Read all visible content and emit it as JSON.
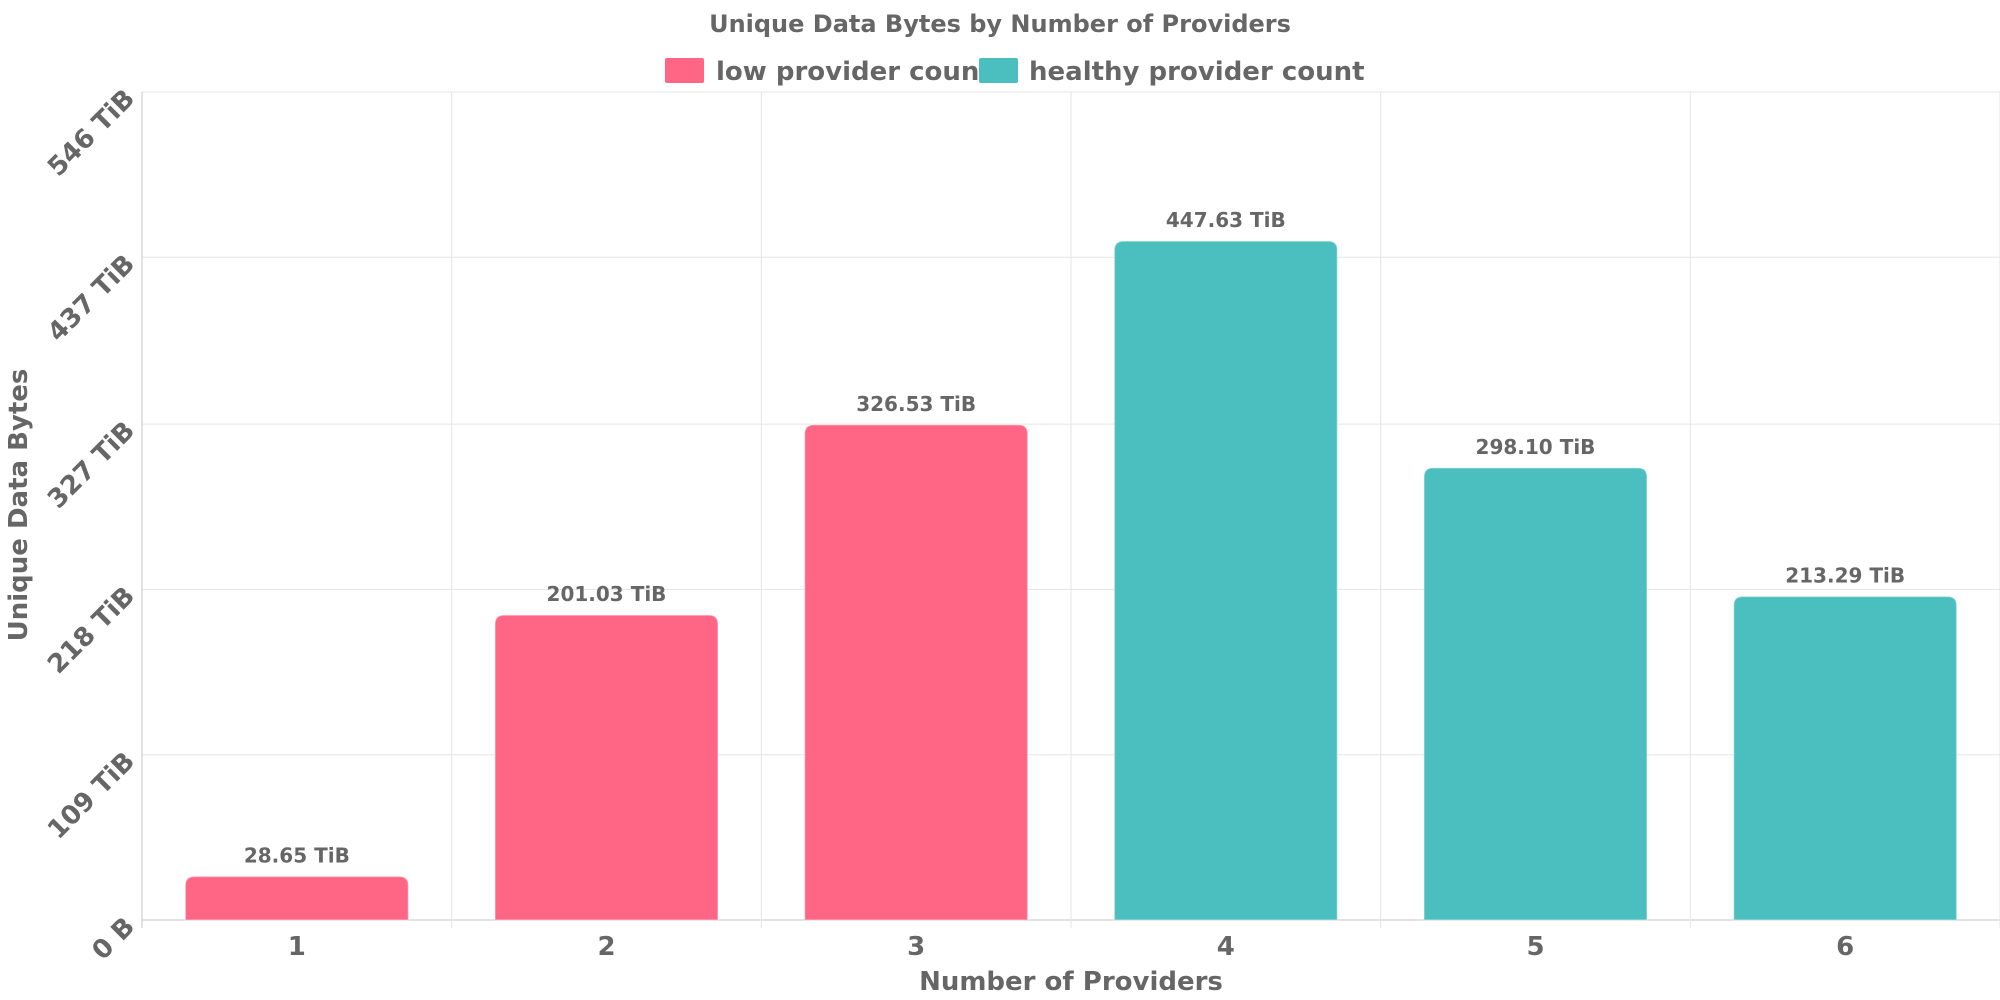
{
  "chart_data": {
    "type": "bar",
    "title": "Unique Data Bytes by Number of Providers",
    "xlabel": "Number of Providers",
    "ylabel": "Unique Data Bytes",
    "categories": [
      "1",
      "2",
      "3",
      "4",
      "5",
      "6"
    ],
    "values": [
      28.65,
      201.03,
      326.53,
      447.63,
      298.1,
      213.29
    ],
    "value_labels": [
      "28.65 TiB",
      "201.03 TiB",
      "326.53 TiB",
      "447.63 TiB",
      "298.10 TiB",
      "213.29 TiB"
    ],
    "value_unit": "TiB",
    "bar_series": [
      0,
      0,
      0,
      1,
      1,
      1
    ],
    "series": [
      {
        "name": "low provider count",
        "color": "#ff6584"
      },
      {
        "name": "healthy provider count",
        "color": "#4bbfbf"
      }
    ],
    "ylim": [
      0,
      546
    ],
    "yticks": [
      0,
      109,
      218,
      327,
      437,
      546
    ],
    "ytick_labels": [
      "0 B",
      "109 TiB",
      "218 TiB",
      "327 TiB",
      "437 TiB",
      "546 TiB"
    ],
    "grid": true,
    "legend_position": "top-center"
  }
}
